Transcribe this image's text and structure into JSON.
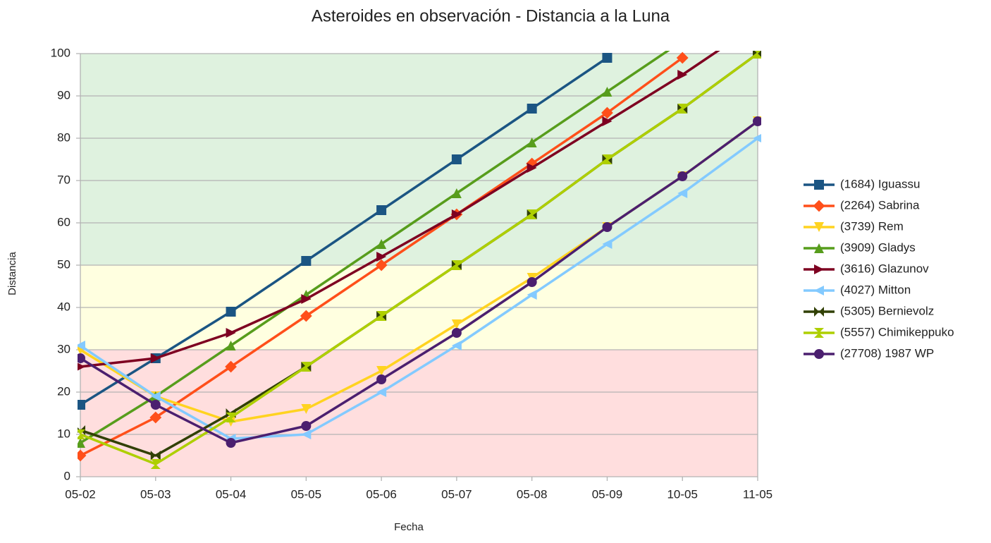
{
  "chart_data": {
    "type": "line",
    "title": "Asteroides en observación - Distancia a la Luna",
    "x_label": "Fecha",
    "y_label": "Distancia",
    "categories": [
      "05-02",
      "05-03",
      "05-04",
      "05-05",
      "05-06",
      "05-07",
      "05-08",
      "05-09",
      "10-05",
      "11-05"
    ],
    "ylim": [
      0,
      100
    ],
    "yticks": [
      0,
      10,
      20,
      30,
      40,
      50,
      60,
      70,
      80,
      90,
      100
    ],
    "grid": true,
    "legend": "right",
    "bands": [
      {
        "from": 0,
        "to": 30,
        "color": "#ffdede"
      },
      {
        "from": 30,
        "to": 50,
        "color": "#ffffe0"
      },
      {
        "from": 50,
        "to": 100,
        "color": "#dff2df"
      }
    ],
    "series": [
      {
        "name": "(1684) Iguassu",
        "color": "#1b5583",
        "marker": "square",
        "values": [
          17,
          28,
          39,
          51,
          63,
          75,
          87,
          99,
          null,
          null
        ]
      },
      {
        "name": "(2264) Sabrina",
        "color": "#ff4f1a",
        "marker": "diamond",
        "values": [
          5,
          14,
          26,
          38,
          50,
          62,
          74,
          86,
          99,
          null
        ]
      },
      {
        "name": "(3739) Rem",
        "color": "#ffd320",
        "marker": "down",
        "values": [
          30,
          19,
          13,
          16,
          25,
          36,
          47,
          59,
          71,
          84
        ]
      },
      {
        "name": "(3909) Gladys",
        "color": "#579d1c",
        "marker": "up",
        "values": [
          8,
          19,
          31,
          43,
          55,
          67,
          79,
          91,
          103,
          null
        ]
      },
      {
        "name": "(3616) Glazunov",
        "color": "#7e0021",
        "marker": "right",
        "values": [
          26,
          28,
          34,
          42,
          52,
          62,
          73,
          84,
          95,
          107
        ]
      },
      {
        "name": "(4027) Mitton",
        "color": "#83caff",
        "marker": "left",
        "values": [
          31,
          19,
          9,
          10,
          20,
          31,
          43,
          55,
          67,
          80
        ]
      },
      {
        "name": "(5305) Bernievolz",
        "color": "#314004",
        "marker": "bowtie",
        "values": [
          11,
          5,
          15,
          26,
          38,
          50,
          62,
          75,
          87,
          100
        ]
      },
      {
        "name": "(5557) Chimikeppuko",
        "color": "#aecf00",
        "marker": "hourglass",
        "values": [
          10,
          3,
          14,
          26,
          38,
          50,
          62,
          75,
          87,
          100
        ]
      },
      {
        "name": "(27708) 1987 WP",
        "color": "#4b1f6f",
        "marker": "circle",
        "values": [
          28,
          17,
          8,
          12,
          23,
          34,
          46,
          59,
          71,
          84
        ]
      }
    ]
  }
}
